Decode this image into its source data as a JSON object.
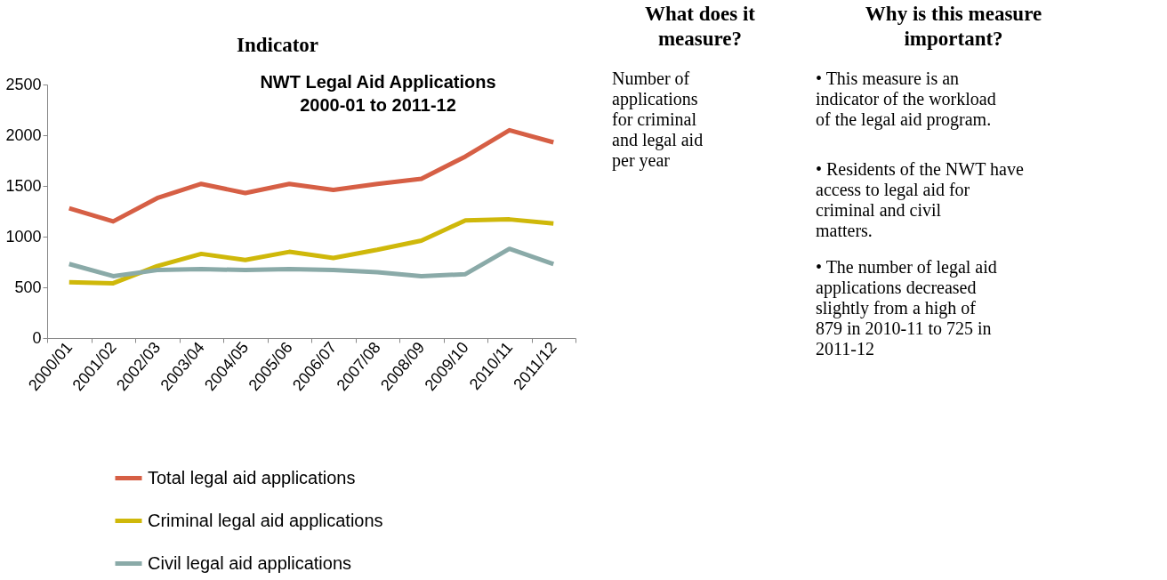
{
  "chart_data": {
    "type": "line",
    "title": "NWT Legal Aid Applications\n2000-01 to 2011-12",
    "categories": [
      "2000/01",
      "2001/02",
      "2002/03",
      "2003/04",
      "2004/05",
      "2005/06",
      "2006/07",
      "2007/08",
      "2008/09",
      "2009/10",
      "2010/11",
      "2011/12"
    ],
    "series": [
      {
        "name": "Total legal aid applications",
        "color": "#d65f45",
        "values": [
          1280,
          1150,
          1380,
          1520,
          1430,
          1520,
          1460,
          1520,
          1570,
          1790,
          2050,
          1930
        ]
      },
      {
        "name": "Criminal legal aid applications",
        "color": "#cfb80a",
        "values": [
          550,
          540,
          710,
          830,
          770,
          850,
          790,
          870,
          960,
          1160,
          1170,
          1130
        ]
      },
      {
        "name": "Civil legal aid applications",
        "color": "#8aaaa8",
        "values": [
          730,
          610,
          670,
          680,
          670,
          680,
          670,
          650,
          610,
          630,
          880,
          730
        ]
      }
    ],
    "ylim": [
      0,
      2500
    ],
    "yticks": [
      0,
      500,
      1000,
      1500,
      2000,
      2500
    ],
    "grid": false,
    "legend": "bottom",
    "line_style": "solid",
    "marker": "none",
    "annotations": [
      "Indicator",
      "What does it measure?",
      "Why is this measure important?",
      "Number of applications for criminal and legal aid per year",
      "• This measure is an indicator of the workload of the legal aid program.",
      "• Residents of the NWT have access to legal aid for criminal and civil matters.",
      "• The number of legal aid applications decreased slightly from a high of 879 in 2010-11 to 725 in 2011-12"
    ]
  }
}
